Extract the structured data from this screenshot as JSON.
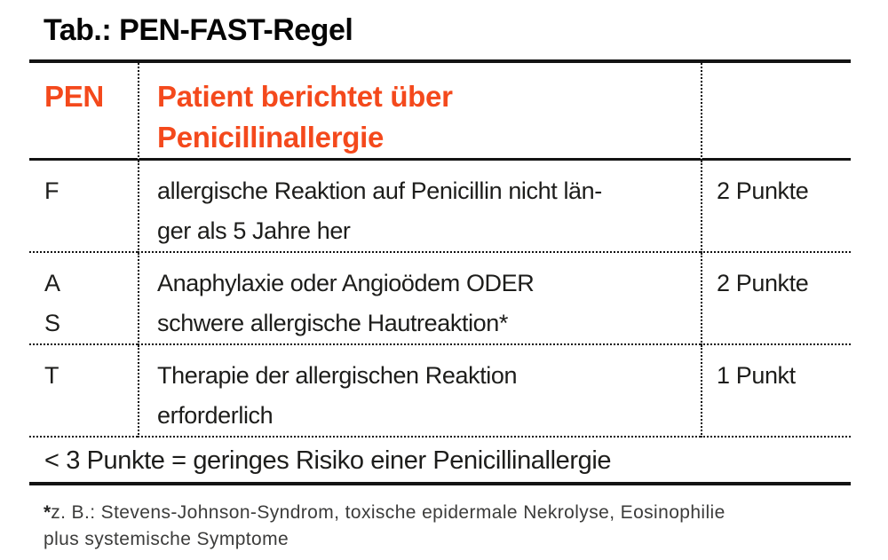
{
  "colors": {
    "accent": "#f4491c",
    "text": "#1d1d1b",
    "rule": "#131313",
    "footnote_text": "#3c3c3b"
  },
  "title": "Tab.: PEN-FAST-Regel",
  "table": {
    "header": {
      "acronym": "PEN",
      "criterion": "Patient berichtet über\nPenicillinallergie",
      "points": ""
    },
    "rows": [
      {
        "letter": "F",
        "criterion": "allergische Reaktion auf Penicillin nicht län-\nger als 5 Jahre her",
        "points": "2 Punkte"
      },
      {
        "letter": "A\nS",
        "criterion": "Anaphylaxie oder Angioödem ODER\nschwere allergische Hautreaktion*",
        "points": "2 Punkte"
      },
      {
        "letter": "T",
        "criterion": "Therapie der allergischen Reaktion\nerforderlich",
        "points": "1 Punkt"
      }
    ],
    "footer": "< 3 Punkte = geringes Risiko einer Penicillinallergie"
  },
  "footnote": {
    "marker": "*",
    "text": "z. B.: Stevens-Johnson-Syndrom, toxische epidermale Nekrolyse, Eosinophilie\nplus systemische Symptome"
  }
}
